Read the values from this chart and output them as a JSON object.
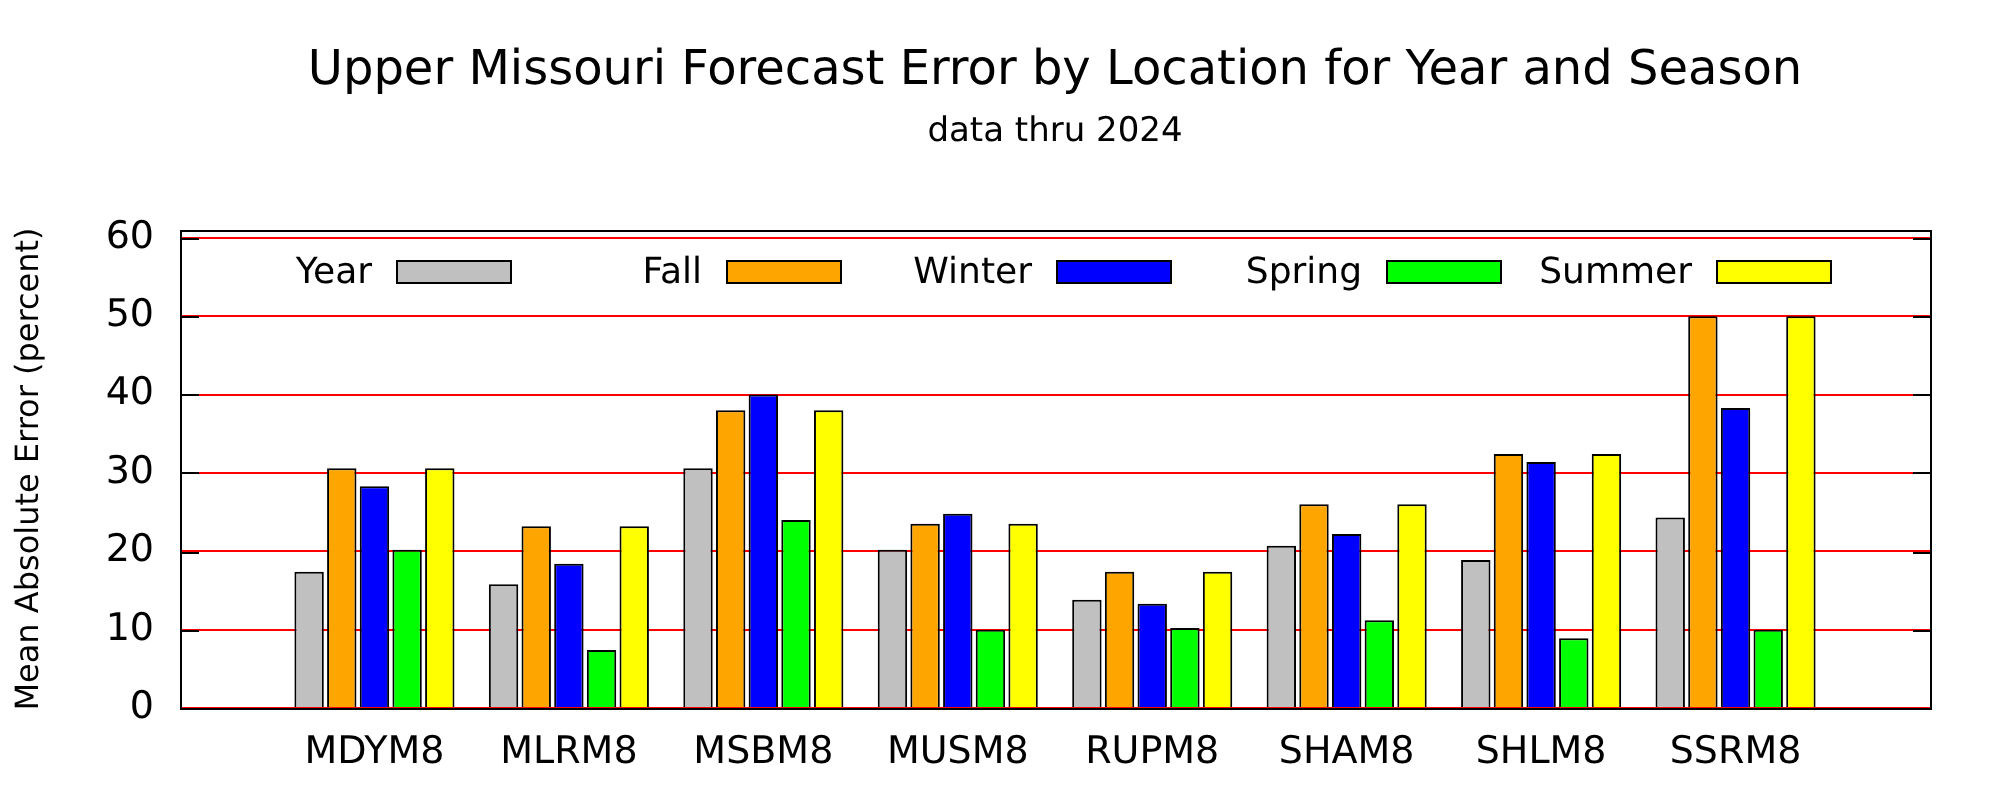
{
  "chart_data": {
    "type": "bar",
    "title": "Upper Missouri Forecast Error by Location for Year and Season",
    "subtitle": "data thru 2024",
    "ylabel": "Mean Absolute Error (percent)",
    "categories": [
      "MDYM8",
      "MLRM8",
      "MSBM8",
      "MUSM8",
      "RUPM8",
      "SHAM8",
      "SHLM8",
      "SSRM8"
    ],
    "series": [
      {
        "name": "Year",
        "color": "#c0c0c0",
        "values": [
          17.4,
          15.8,
          30.6,
          20.2,
          13.8,
          20.7,
          18.9,
          24.3
        ]
      },
      {
        "name": "Fall",
        "color": "#ffa500",
        "values": [
          30.6,
          23.2,
          38.0,
          23.5,
          17.4,
          26.0,
          32.4,
          50.0
        ]
      },
      {
        "name": "Winter",
        "color": "#0000ff",
        "values": [
          28.3,
          18.4,
          40.0,
          24.8,
          13.3,
          22.2,
          31.4,
          38.3
        ]
      },
      {
        "name": "Spring",
        "color": "#00ff00",
        "values": [
          20.2,
          7.4,
          24.0,
          10.0,
          10.2,
          11.2,
          8.9,
          10.0
        ]
      },
      {
        "name": "Summer",
        "color": "#ffff00",
        "values": [
          30.6,
          23.2,
          38.0,
          23.5,
          17.4,
          26.0,
          32.4,
          50.0
        ]
      }
    ],
    "ylim": [
      0,
      61
    ],
    "yticks": [
      0,
      10,
      20,
      30,
      40,
      50,
      60
    ],
    "grid": "y",
    "legend": "top"
  }
}
